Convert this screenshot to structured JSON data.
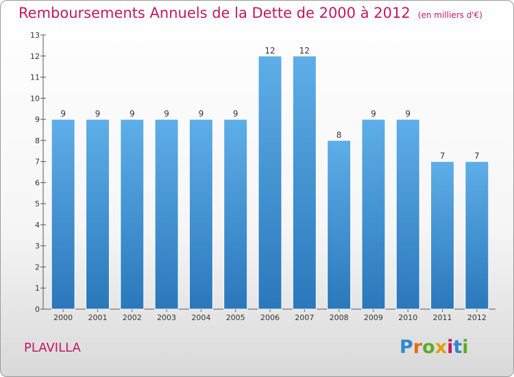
{
  "header": {
    "title": "Remboursements Annuels de la Dette de 2000 à 2012",
    "unit": "(en milliers d'€)"
  },
  "footer": {
    "commune": "PLAVILLA",
    "logo": "Proxiti"
  },
  "colors": {
    "title": "#c2185b",
    "bar_top": "#5eaee8",
    "bar_bottom": "#2a78bb"
  },
  "chart_data": {
    "type": "bar",
    "title": "Remboursements Annuels de la Dette de 2000 à 2012",
    "xlabel": "",
    "ylabel": "",
    "categories": [
      "2000",
      "2001",
      "2002",
      "2003",
      "2004",
      "2005",
      "2006",
      "2007",
      "2008",
      "2009",
      "2010",
      "2011",
      "2012"
    ],
    "values": [
      9,
      9,
      9,
      9,
      9,
      9,
      12,
      12,
      8,
      9,
      9,
      7,
      7
    ],
    "ylim": [
      0,
      13
    ],
    "yticks": [
      0,
      1,
      2,
      3,
      4,
      5,
      6,
      7,
      8,
      9,
      10,
      11,
      12,
      13
    ],
    "grid": false
  }
}
